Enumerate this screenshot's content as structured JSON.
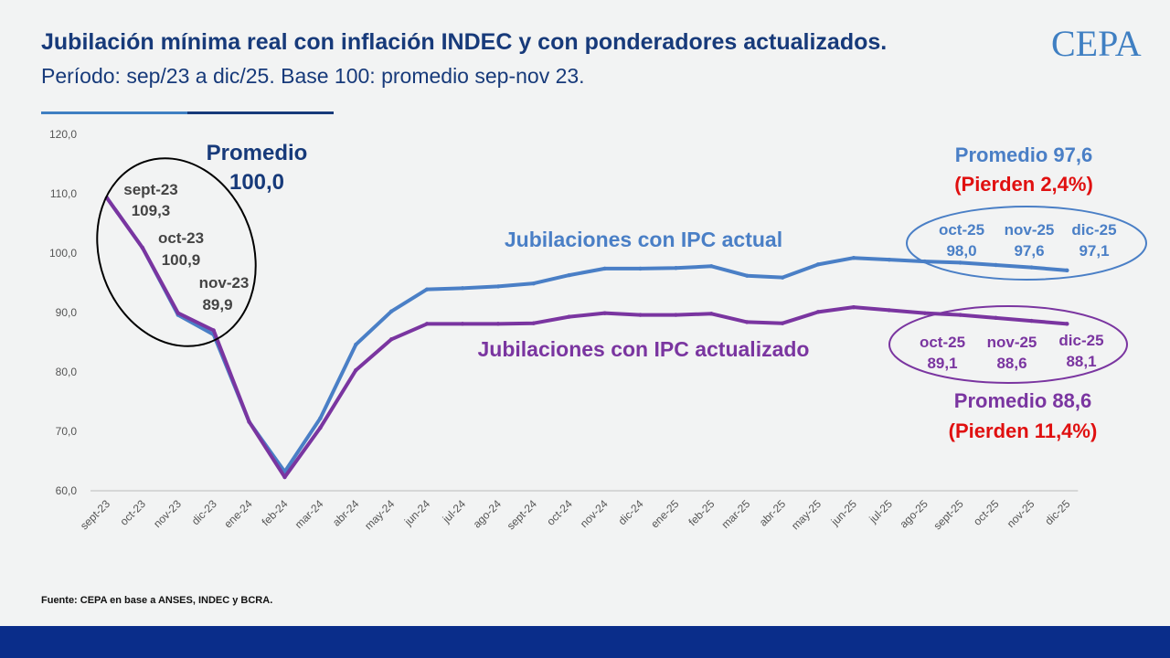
{
  "header": {
    "title": "Jubilación mínima real con inflación INDEC y con ponderadores actualizados.",
    "subtitle": "Período: sep/23 a dic/25. Base 100: promedio sep-nov 23.",
    "logo_text": "CEPA"
  },
  "footer": {
    "source": "Fuente: CEPA en base a ANSES, INDEC y BCRA."
  },
  "colors": {
    "actual": "#4a7fc6",
    "actualizado": "#7a35a0",
    "navy": "#173a7a",
    "red": "#e01010",
    "footer": "#0a2d8a"
  },
  "chart_data": {
    "type": "line",
    "title": "Jubilación mínima real con inflación INDEC y con ponderadores actualizados.",
    "ylim": [
      60,
      120
    ],
    "yticks": [
      "120,0",
      "110,0",
      "100,0",
      "90,0",
      "80,0",
      "70,0",
      "60,0"
    ],
    "ytick_values": [
      120,
      110,
      100,
      90,
      80,
      70,
      60
    ],
    "categories": [
      "sept-23",
      "oct-23",
      "nov-23",
      "dic-23",
      "ene-24",
      "feb-24",
      "mar-24",
      "abr-24",
      "may-24",
      "jun-24",
      "jul-24",
      "ago-24",
      "sept-24",
      "oct-24",
      "nov-24",
      "dic-24",
      "ene-25",
      "feb-25",
      "mar-25",
      "abr-25",
      "may-25",
      "jun-25",
      "jul-25",
      "ago-25",
      "sept-25",
      "oct-25",
      "nov-25",
      "dic-25"
    ],
    "series": [
      {
        "name": "Jubilaciones con IPC actual",
        "color": "#4a7fc6",
        "values": [
          109.3,
          100.9,
          89.6,
          86.3,
          71.6,
          63.2,
          72.2,
          84.6,
          90.2,
          93.9,
          94.1,
          94.4,
          94.9,
          96.3,
          97.4,
          97.4,
          97.5,
          97.8,
          96.2,
          95.9,
          98.1,
          99.2,
          98.9,
          98.6,
          98.4,
          98.0,
          97.6,
          97.1
        ]
      },
      {
        "name": "Jubilaciones con IPC actualizado",
        "color": "#7a35a0",
        "values": [
          109.3,
          100.9,
          89.9,
          87.0,
          71.6,
          62.3,
          70.6,
          80.3,
          85.5,
          88.1,
          88.1,
          88.1,
          88.2,
          89.3,
          89.9,
          89.6,
          89.6,
          89.8,
          88.4,
          88.2,
          90.1,
          90.9,
          90.4,
          89.9,
          89.6,
          89.1,
          88.6,
          88.1
        ]
      }
    ],
    "annotations": {
      "promedio_inicial": {
        "line1": "Promedio",
        "line2": "100,0"
      },
      "start_points": [
        {
          "label": "sept-23",
          "value": "109,3"
        },
        {
          "label": "oct-23",
          "value": "100,9"
        },
        {
          "label": "nov-23",
          "value": "89,9"
        }
      ],
      "actual_promedio": "Promedio 97,6",
      "actual_pierden": "(Pierden 2,4%)",
      "actual_end": [
        {
          "label": "oct-25",
          "value": "98,0"
        },
        {
          "label": "nov-25",
          "value": "97,6"
        },
        {
          "label": "dic-25",
          "value": "97,1"
        }
      ],
      "actualizado_promedio": "Promedio 88,6",
      "actualizado_pierden": "(Pierden 11,4%)",
      "actualizado_end": [
        {
          "label": "oct-25",
          "value": "89,1"
        },
        {
          "label": "nov-25",
          "value": "88,6"
        },
        {
          "label": "dic-25",
          "value": "88,1"
        }
      ]
    }
  }
}
